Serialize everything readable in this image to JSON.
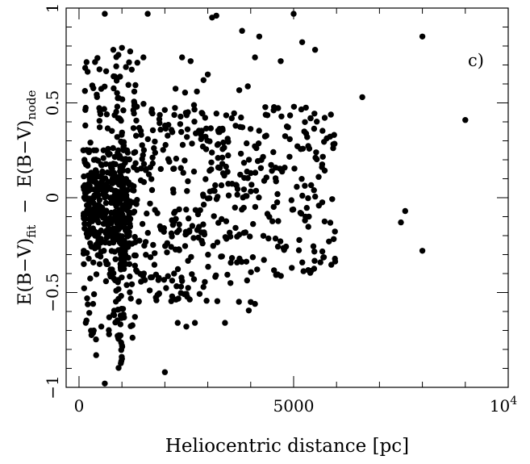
{
  "chart_data": {
    "type": "scatter",
    "title": "",
    "panel_label": "c)",
    "xlabel": "Heliocentric distance [pc]",
    "ylabel": {
      "prefix": "E(B−V)",
      "sub1": "fit",
      "middle": "  −  E(B−V)",
      "sub2": "node"
    },
    "xlim": [
      -300,
      10000
    ],
    "ylim": [
      -1,
      1
    ],
    "x_ticks": [
      {
        "value": 0,
        "label": "0"
      },
      {
        "value": 5000,
        "label": "5000"
      }
    ],
    "x_tick_power": {
      "value": 10000,
      "base": "10",
      "exp": "4"
    },
    "y_ticks": [
      {
        "value": -1,
        "label": "−1"
      },
      {
        "value": -0.5,
        "label": "−0.5"
      },
      {
        "value": 0,
        "label": "0"
      },
      {
        "value": 0.5,
        "label": "0.5"
      },
      {
        "value": 1,
        "label": "1"
      }
    ],
    "grid": false,
    "marker_color": "#000000",
    "outlier_points": [
      [
        600,
        0.97
      ],
      [
        1600,
        0.97
      ],
      [
        3200,
        0.96
      ],
      [
        3100,
        0.95
      ],
      [
        3800,
        0.88
      ],
      [
        4200,
        0.85
      ],
      [
        5000,
        0.97
      ],
      [
        5200,
        0.82
      ],
      [
        8000,
        0.85
      ],
      [
        5500,
        0.78
      ],
      [
        4700,
        0.72
      ],
      [
        4100,
        0.74
      ],
      [
        6600,
        0.53
      ],
      [
        9000,
        0.41
      ],
      [
        7500,
        -0.13
      ],
      [
        7600,
        -0.07
      ],
      [
        8000,
        -0.28
      ],
      [
        2000,
        -0.92
      ],
      [
        600,
        -0.98
      ],
      [
        400,
        -0.83
      ],
      [
        1000,
        -0.85
      ],
      [
        2500,
        -0.68
      ],
      [
        3400,
        -0.66
      ],
      [
        4000,
        -0.55
      ],
      [
        4100,
        -0.56
      ],
      [
        2300,
        -0.66
      ],
      [
        2700,
        -0.66
      ],
      [
        1000,
        -0.78
      ],
      [
        700,
        -0.72
      ],
      [
        2900,
        0.62
      ],
      [
        3000,
        0.65
      ],
      [
        2400,
        0.74
      ],
      [
        2600,
        0.72
      ],
      [
        1500,
        0.74
      ],
      [
        800,
        0.78
      ],
      [
        1000,
        0.79
      ]
    ],
    "clusters": [
      {
        "x": [
          100,
          1200
        ],
        "y": [
          -0.35,
          0.25
        ],
        "count": 320,
        "dist": "gauss"
      },
      {
        "x": [
          100,
          1400
        ],
        "y": [
          -0.75,
          0.8
        ],
        "count": 170,
        "dist": "uniform"
      },
      {
        "x": [
          800,
          1050
        ],
        "y": [
          -0.9,
          0.7
        ],
        "count": 70,
        "dist": "uniform"
      },
      {
        "x": [
          1200,
          3000
        ],
        "y": [
          -0.55,
          0.5
        ],
        "count": 190,
        "dist": "uniform"
      },
      {
        "x": [
          3000,
          6000
        ],
        "y": [
          -0.42,
          0.48
        ],
        "count": 230,
        "dist": "uniform"
      },
      {
        "x": [
          2000,
          4000
        ],
        "y": [
          -0.6,
          0.6
        ],
        "count": 40,
        "dist": "uniform"
      }
    ]
  }
}
